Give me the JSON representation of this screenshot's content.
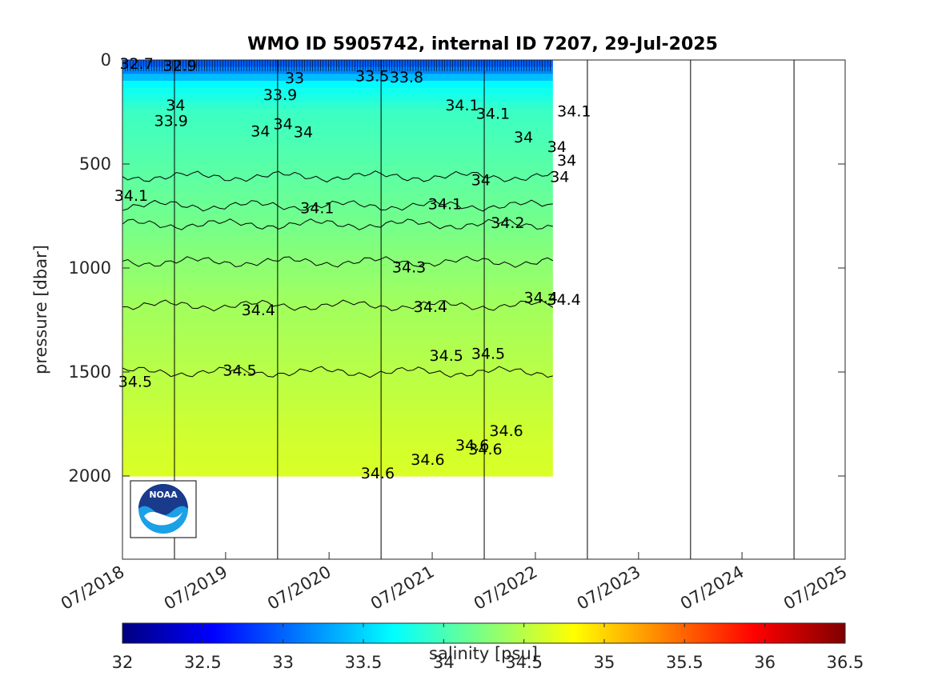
{
  "chart_data": {
    "type": "heatmap",
    "title": "WMO ID 5905742, internal ID 7207, 29-Jul-2025",
    "ylabel": "pressure [dbar]",
    "ylim": [
      0,
      2400
    ],
    "y_reversed": true,
    "y_ticks": [
      "0",
      "500",
      "1000",
      "1500",
      "2000"
    ],
    "y_tick_values": [
      0,
      500,
      1000,
      1500,
      2000
    ],
    "x_tick_labels": [
      "07/2018",
      "07/2019",
      "07/2020",
      "07/2021",
      "07/2022",
      "07/2023",
      "07/2024",
      "07/2025"
    ],
    "x_tick_values": [
      "2018-07-01",
      "2019-07-01",
      "2020-07-01",
      "2021-07-01",
      "2022-07-01",
      "2023-07-01",
      "2024-07-01",
      "2025-07-01"
    ],
    "xlim": [
      "2018-07-01",
      "2025-07-01"
    ],
    "year_boundaries": [
      "2019-01-01",
      "2020-01-01",
      "2021-01-01",
      "2022-01-01",
      "2023-01-01",
      "2024-01-01",
      "2025-01-01"
    ],
    "data_time_range": [
      "2018-07-01",
      "2022-09-01"
    ],
    "contour_levels": [
      {
        "value": 34.1,
        "pressure": 560
      },
      {
        "value": 34.1,
        "pressure": 700
      },
      {
        "value": 34.2,
        "pressure": 790
      },
      {
        "value": 34.3,
        "pressure": 970
      },
      {
        "value": 34.4,
        "pressure": 1180
      },
      {
        "value": 34.5,
        "pressure": 1500
      }
    ],
    "contour_labels": [
      {
        "text": "32.7",
        "x": "2018-08-20",
        "y": 15
      },
      {
        "text": "32.9",
        "x": "2019-01-20",
        "y": 25
      },
      {
        "text": "33",
        "x": "2020-03-01",
        "y": 85
      },
      {
        "text": "33.5",
        "x": "2020-12-01",
        "y": 75
      },
      {
        "text": "33.8",
        "x": "2021-04-01",
        "y": 80
      },
      {
        "text": "33.9",
        "x": "2020-01-10",
        "y": 165
      },
      {
        "text": "34",
        "x": "2019-01-05",
        "y": 215
      },
      {
        "text": "33.9",
        "x": "2018-12-20",
        "y": 290
      },
      {
        "text": "34",
        "x": "2019-11-01",
        "y": 340
      },
      {
        "text": "34",
        "x": "2020-04-01",
        "y": 345
      },
      {
        "text": "34",
        "x": "2020-01-20",
        "y": 305
      },
      {
        "text": "34.1",
        "x": "2021-10-15",
        "y": 215
      },
      {
        "text": "34.1",
        "x": "2022-02-01",
        "y": 255
      },
      {
        "text": "34.1",
        "x": "2022-11-15",
        "y": 245
      },
      {
        "text": "34",
        "x": "2022-05-20",
        "y": 370
      },
      {
        "text": "34",
        "x": "2022-09-15",
        "y": 415
      },
      {
        "text": "34",
        "x": "2022-10-20",
        "y": 480
      },
      {
        "text": "34",
        "x": "2022-09-25",
        "y": 560
      },
      {
        "text": "34",
        "x": "2021-12-20",
        "y": 575
      },
      {
        "text": "34.1",
        "x": "2018-08-01",
        "y": 650
      },
      {
        "text": "34.1",
        "x": "2020-05-20",
        "y": 710
      },
      {
        "text": "34.1",
        "x": "2021-08-15",
        "y": 690
      },
      {
        "text": "34.2",
        "x": "2022-03-25",
        "y": 780
      },
      {
        "text": "34.3",
        "x": "2021-04-10",
        "y": 995
      },
      {
        "text": "34.4",
        "x": "2022-07-20",
        "y": 1140
      },
      {
        "text": "34.4",
        "x": "2022-10-10",
        "y": 1150
      },
      {
        "text": "34.4",
        "x": "2021-06-25",
        "y": 1185
      },
      {
        "text": "34.4",
        "x": "2019-10-25",
        "y": 1200
      },
      {
        "text": "34.5",
        "x": "2021-08-20",
        "y": 1420
      },
      {
        "text": "34.5",
        "x": "2022-01-15",
        "y": 1410
      },
      {
        "text": "34.5",
        "x": "2019-08-20",
        "y": 1490
      },
      {
        "text": "34.5",
        "x": "2018-08-15",
        "y": 1545
      },
      {
        "text": "34.6",
        "x": "2022-03-20",
        "y": 1780
      },
      {
        "text": "34.6",
        "x": "2021-11-20",
        "y": 1850
      },
      {
        "text": "34.6",
        "x": "2021-06-15",
        "y": 1920
      },
      {
        "text": "34.6",
        "x": "2020-12-20",
        "y": 1985
      },
      {
        "text": "34.6",
        "x": "2022-01-05",
        "y": 1870
      }
    ],
    "colorbar": {
      "label": "salinity [psu]",
      "range": [
        32,
        36.5
      ],
      "ticks": [
        "32",
        "32.5",
        "33",
        "33.5",
        "34",
        "34.5",
        "35",
        "35.5",
        "36",
        "36.5"
      ],
      "tick_values": [
        32,
        32.5,
        33,
        33.5,
        34,
        34.5,
        35,
        35.5,
        36,
        36.5
      ],
      "colormap": "jet"
    },
    "grid": false
  },
  "logo": {
    "text": "NOAA",
    "colors": {
      "navy": "#1a3a8c",
      "sky": "#1ca0e6"
    }
  }
}
